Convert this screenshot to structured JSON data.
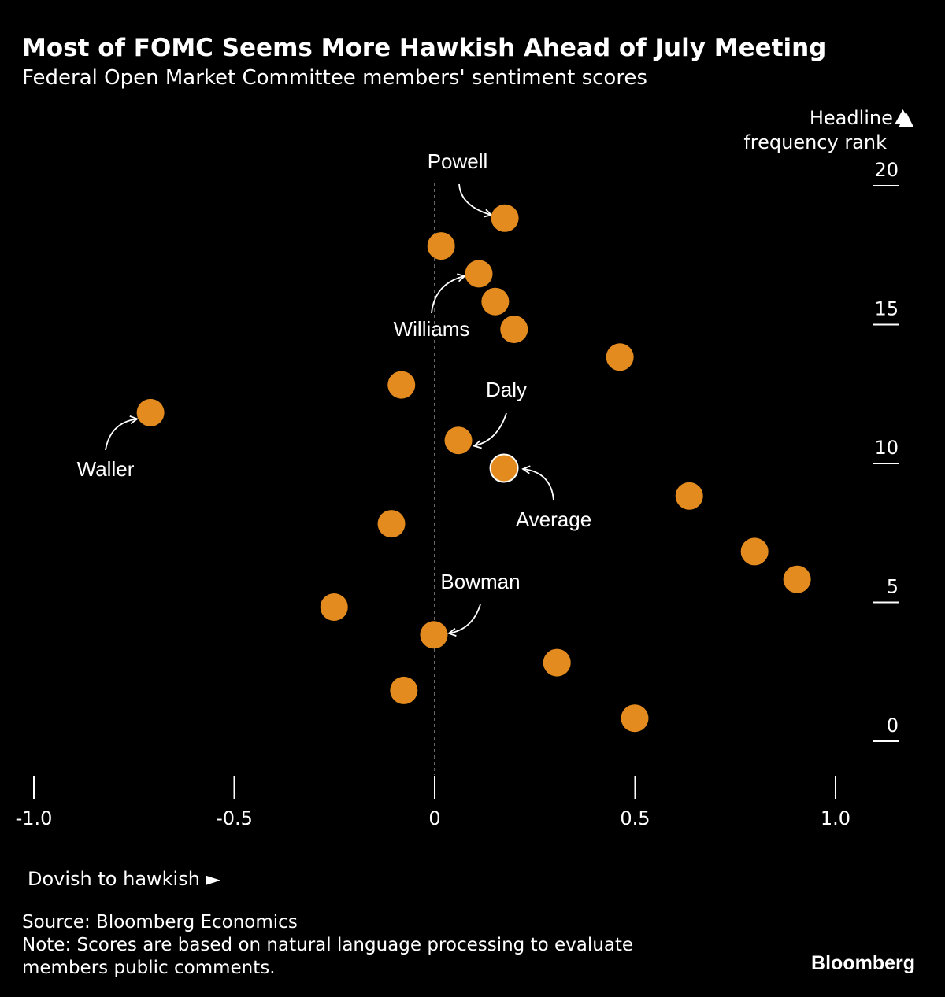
{
  "chart_data": {
    "type": "scatter",
    "title": "Most of FOMC Seems More Hawkish Ahead of July Meeting",
    "subtitle": "Federal Open Market Committee members' sentiment scores",
    "xlabel": "Dovish to hawkish ►",
    "ylabel": "Headline frequency rank",
    "ylabel_lines": [
      "Headline ▲",
      "frequency rank"
    ],
    "xlim": [
      -1.0,
      1.1
    ],
    "ylim": [
      0,
      20
    ],
    "x_ticks": [
      -1.0,
      -0.5,
      0,
      0.5,
      1.0
    ],
    "x_tick_labels": [
      "-1.0",
      "-0.5",
      "0",
      "0.5",
      "1.0"
    ],
    "y_ticks": [
      20,
      15,
      10,
      5,
      0
    ],
    "y_tick_labels": [
      "20",
      "15",
      "10",
      "5",
      "0"
    ],
    "reference_line_x": 0,
    "marker_color": "#E38B1F",
    "points": [
      {
        "x": 0.175,
        "y": 19,
        "label": "Powell"
      },
      {
        "x": 0.016,
        "y": 18
      },
      {
        "x": 0.11,
        "y": 17,
        "label": "Williams"
      },
      {
        "x": 0.151,
        "y": 16
      },
      {
        "x": 0.198,
        "y": 15
      },
      {
        "x": 0.462,
        "y": 14
      },
      {
        "x": -0.083,
        "y": 13
      },
      {
        "x": -0.709,
        "y": 12,
        "label": "Waller"
      },
      {
        "x": 0.059,
        "y": 11,
        "label": "Daly"
      },
      {
        "x": 0.173,
        "y": 10,
        "label": "Average",
        "highlight": true
      },
      {
        "x": 0.635,
        "y": 9
      },
      {
        "x": -0.108,
        "y": 8
      },
      {
        "x": 0.798,
        "y": 7
      },
      {
        "x": 0.904,
        "y": 6
      },
      {
        "x": -0.251,
        "y": 5
      },
      {
        "x": -0.002,
        "y": 4,
        "label": "Bowman"
      },
      {
        "x": 0.305,
        "y": 3
      },
      {
        "x": -0.077,
        "y": 2
      },
      {
        "x": 0.499,
        "y": 1
      }
    ]
  },
  "footer": {
    "source": "Source: Bloomberg Economics",
    "note_line1": "Note: Scores are based on natural language processing to evaluate",
    "note_line2": "members public comments.",
    "logo": "Bloomberg"
  }
}
